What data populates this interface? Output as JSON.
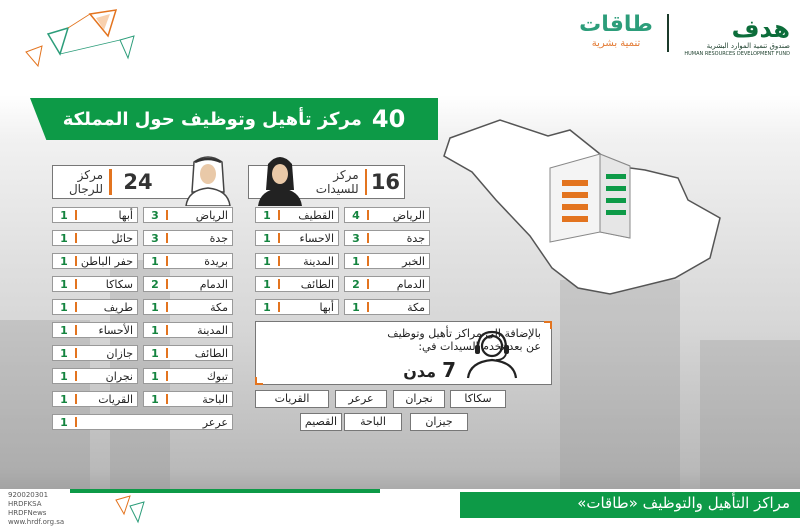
{
  "header": {
    "hrdf_logo_text": "هدف",
    "hrdf_sub_ar": "صندوق تنمية الموارد البشرية",
    "hrdf_sub_en": "HUMAN RESOURCES DEVELOPMENT FUND",
    "taqat_logo_text": "طاقات",
    "taqat_sub": "تنمية بشرية"
  },
  "banner": {
    "number": "40",
    "text": "مركز تأهيل وتوظيف حول المملكة"
  },
  "women": {
    "count": "16",
    "label_line1": "مركز",
    "label_line2": "للسيدات",
    "cities": [
      {
        "name": "الرياض",
        "count": "4"
      },
      {
        "name": "جدة",
        "count": "3"
      },
      {
        "name": "الخبر",
        "count": "1"
      },
      {
        "name": "الدمام",
        "count": "2"
      },
      {
        "name": "مكة",
        "count": "1"
      },
      {
        "name": "القطيف",
        "count": "1"
      },
      {
        "name": "الاحساء",
        "count": "1"
      },
      {
        "name": "المدينة",
        "count": "1"
      },
      {
        "name": "الطائف",
        "count": "1"
      },
      {
        "name": "أبها",
        "count": "1"
      }
    ]
  },
  "men": {
    "count": "24",
    "label_line1": "مركز",
    "label_line2": "للرجال",
    "cities": [
      {
        "name": "الرياض",
        "count": "3"
      },
      {
        "name": "جدة",
        "count": "3"
      },
      {
        "name": "بريدة",
        "count": "1"
      },
      {
        "name": "الدمام",
        "count": "2"
      },
      {
        "name": "مكة",
        "count": "1"
      },
      {
        "name": "المدينة",
        "count": "1"
      },
      {
        "name": "الطائف",
        "count": "1"
      },
      {
        "name": "تبوك",
        "count": "1"
      },
      {
        "name": "الباحة",
        "count": "1"
      },
      {
        "name": "عرعر",
        "count": "1"
      },
      {
        "name": "أبها",
        "count": "1"
      },
      {
        "name": "حائل",
        "count": "1"
      },
      {
        "name": "حفر الباطن",
        "count": "1"
      },
      {
        "name": "سكاكا",
        "count": "1"
      },
      {
        "name": "طريف",
        "count": "1"
      },
      {
        "name": "الأحساء",
        "count": "1"
      },
      {
        "name": "جازان",
        "count": "1"
      },
      {
        "name": "نجران",
        "count": "1"
      },
      {
        "name": "القريات",
        "count": "1"
      }
    ]
  },
  "remote": {
    "text": "بالإضافة الى مراكز تأهيل وتوظيف عن بعد تخدم السيدات في:",
    "number": "7",
    "unit": "مدن",
    "cities": [
      "سكاكا",
      "نجران",
      "عرعر",
      "القريات",
      "جيزان",
      "الباحة",
      "القصيم"
    ]
  },
  "footer": {
    "title": "مراكز التأهيل والتوظيف «طاقات»",
    "phone": "920020301",
    "twitter1": "HRDFKSA",
    "twitter2": "HRDFNews",
    "website": "www.hrdf.org.sa"
  },
  "colors": {
    "green": "#0d9a47",
    "orange": "#e3741f"
  }
}
